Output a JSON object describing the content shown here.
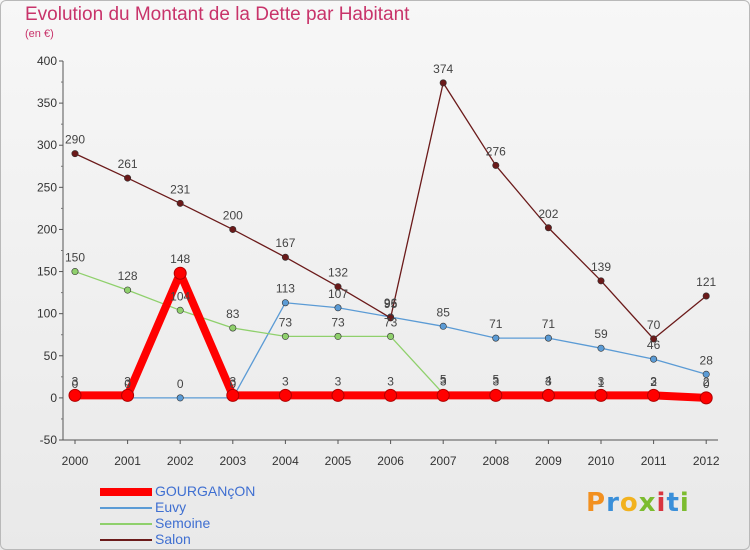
{
  "title": "Evolution du Montant de la Dette par Habitant",
  "subtitle": "(en €)",
  "logo_text": "Proxiti",
  "chart_data": {
    "type": "line",
    "title": "Evolution du Montant de la Dette par Habitant",
    "ylabel": "(en €)",
    "xlabel": "",
    "categories": [
      "2000",
      "2001",
      "2002",
      "2003",
      "2004",
      "2005",
      "2006",
      "2007",
      "2008",
      "2009",
      "2010",
      "2011",
      "2012"
    ],
    "ylim": [
      -50,
      400
    ],
    "yticks": [
      "-50",
      "0",
      "50",
      "100",
      "150",
      "200",
      "250",
      "300",
      "350",
      "400"
    ],
    "grid": false,
    "legend_position": "bottom-left",
    "series": [
      {
        "name": "GOURGANçON",
        "color": "#ff0000",
        "values": [
          3,
          3,
          148,
          3,
          3,
          3,
          3,
          3,
          3,
          3,
          3,
          3,
          0
        ],
        "labels": [
          "3",
          "3",
          "148",
          "3",
          "3",
          "3",
          "3",
          "3",
          "3",
          "3",
          "3",
          "3",
          "0"
        ]
      },
      {
        "name": "Euvy",
        "color": "#5b9bd5",
        "values": [
          0,
          0,
          0,
          0,
          113,
          107,
          96,
          85,
          71,
          71,
          59,
          46,
          28
        ],
        "labels": [
          "0",
          "0",
          "0",
          "0",
          "113",
          "107",
          "96",
          "85",
          "71",
          "71",
          "59",
          "46",
          "28"
        ]
      },
      {
        "name": "Semoine",
        "color": "#8fd06c",
        "values": [
          150,
          128,
          104,
          83,
          73,
          73,
          73,
          5,
          5,
          4,
          1,
          2,
          2
        ],
        "labels": [
          "150",
          "128",
          "104",
          "83",
          "73",
          "73",
          "73",
          "5",
          "5",
          "4",
          "1",
          "2",
          "2"
        ]
      },
      {
        "name": "Salon",
        "color": "#6b1a1a",
        "values": [
          290,
          261,
          231,
          200,
          167,
          132,
          95,
          374,
          276,
          202,
          139,
          70,
          121
        ],
        "labels": [
          "290",
          "261",
          "231",
          "200",
          "167",
          "132",
          "95",
          "374",
          "276",
          "202",
          "139",
          "70",
          "121"
        ]
      }
    ]
  }
}
